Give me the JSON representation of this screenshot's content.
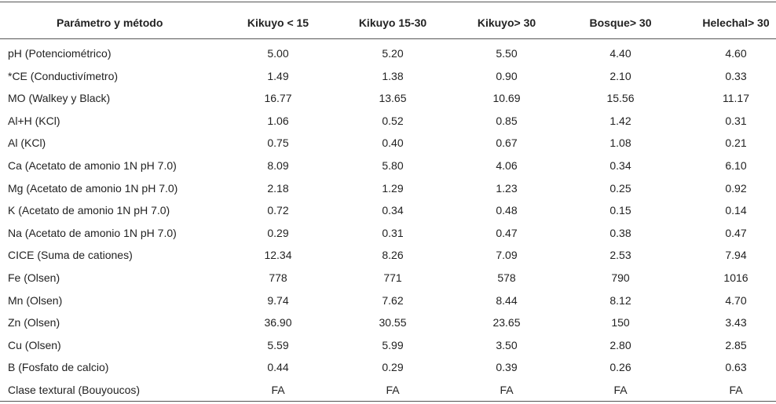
{
  "table": {
    "header": [
      "Parámetro y método",
      "Kikuyo < 15",
      "Kikuyo 15-30",
      "Kikuyo> 30",
      "Bosque> 30",
      "Helechal> 30"
    ],
    "rows": [
      [
        "pH (Potenciométrico)",
        "5.00",
        "5.20",
        "5.50",
        "4.40",
        "4.60"
      ],
      [
        "*CE (Conductivímetro)",
        "1.49",
        "1.38",
        "0.90",
        "2.10",
        "0.33"
      ],
      [
        "MO (Walkey y Black)",
        "16.77",
        "13.65",
        "10.69",
        "15.56",
        "11.17"
      ],
      [
        "Al+H (KCl)",
        "1.06",
        "0.52",
        "0.85",
        "1.42",
        "0.31"
      ],
      [
        "Al (KCl)",
        "0.75",
        "0.40",
        "0.67",
        "1.08",
        "0.21"
      ],
      [
        "Ca (Acetato de amonio 1N pH 7.0)",
        "8.09",
        "5.80",
        "4.06",
        "0.34",
        "6.10"
      ],
      [
        "Mg (Acetato de amonio 1N pH 7.0)",
        "2.18",
        "1.29",
        "1.23",
        "0.25",
        "0.92"
      ],
      [
        "K (Acetato de amonio 1N pH 7.0)",
        "0.72",
        "0.34",
        "0.48",
        "0.15",
        "0.14"
      ],
      [
        "Na (Acetato de amonio 1N pH 7.0)",
        "0.29",
        "0.31",
        "0.47",
        "0.38",
        "0.47"
      ],
      [
        "CICE (Suma de cationes)",
        "12.34",
        "8.26",
        "7.09",
        "2.53",
        "7.94"
      ],
      [
        "Fe (Olsen)",
        "778",
        "771",
        "578",
        "790",
        "1016"
      ],
      [
        "Mn (Olsen)",
        "9.74",
        "7.62",
        "8.44",
        "8.12",
        "4.70"
      ],
      [
        "Zn (Olsen)",
        "36.90",
        "30.55",
        "23.65",
        "150",
        "3.43"
      ],
      [
        "Cu (Olsen)",
        "5.59",
        "5.99",
        "3.50",
        "2.80",
        "2.85"
      ],
      [
        "B (Fosfato de calcio)",
        "0.44",
        "0.29",
        "0.39",
        "0.26",
        "0.63"
      ],
      [
        "Clase textural (Bouyoucos)",
        "FA",
        "FA",
        "FA",
        "FA",
        "FA"
      ]
    ]
  }
}
